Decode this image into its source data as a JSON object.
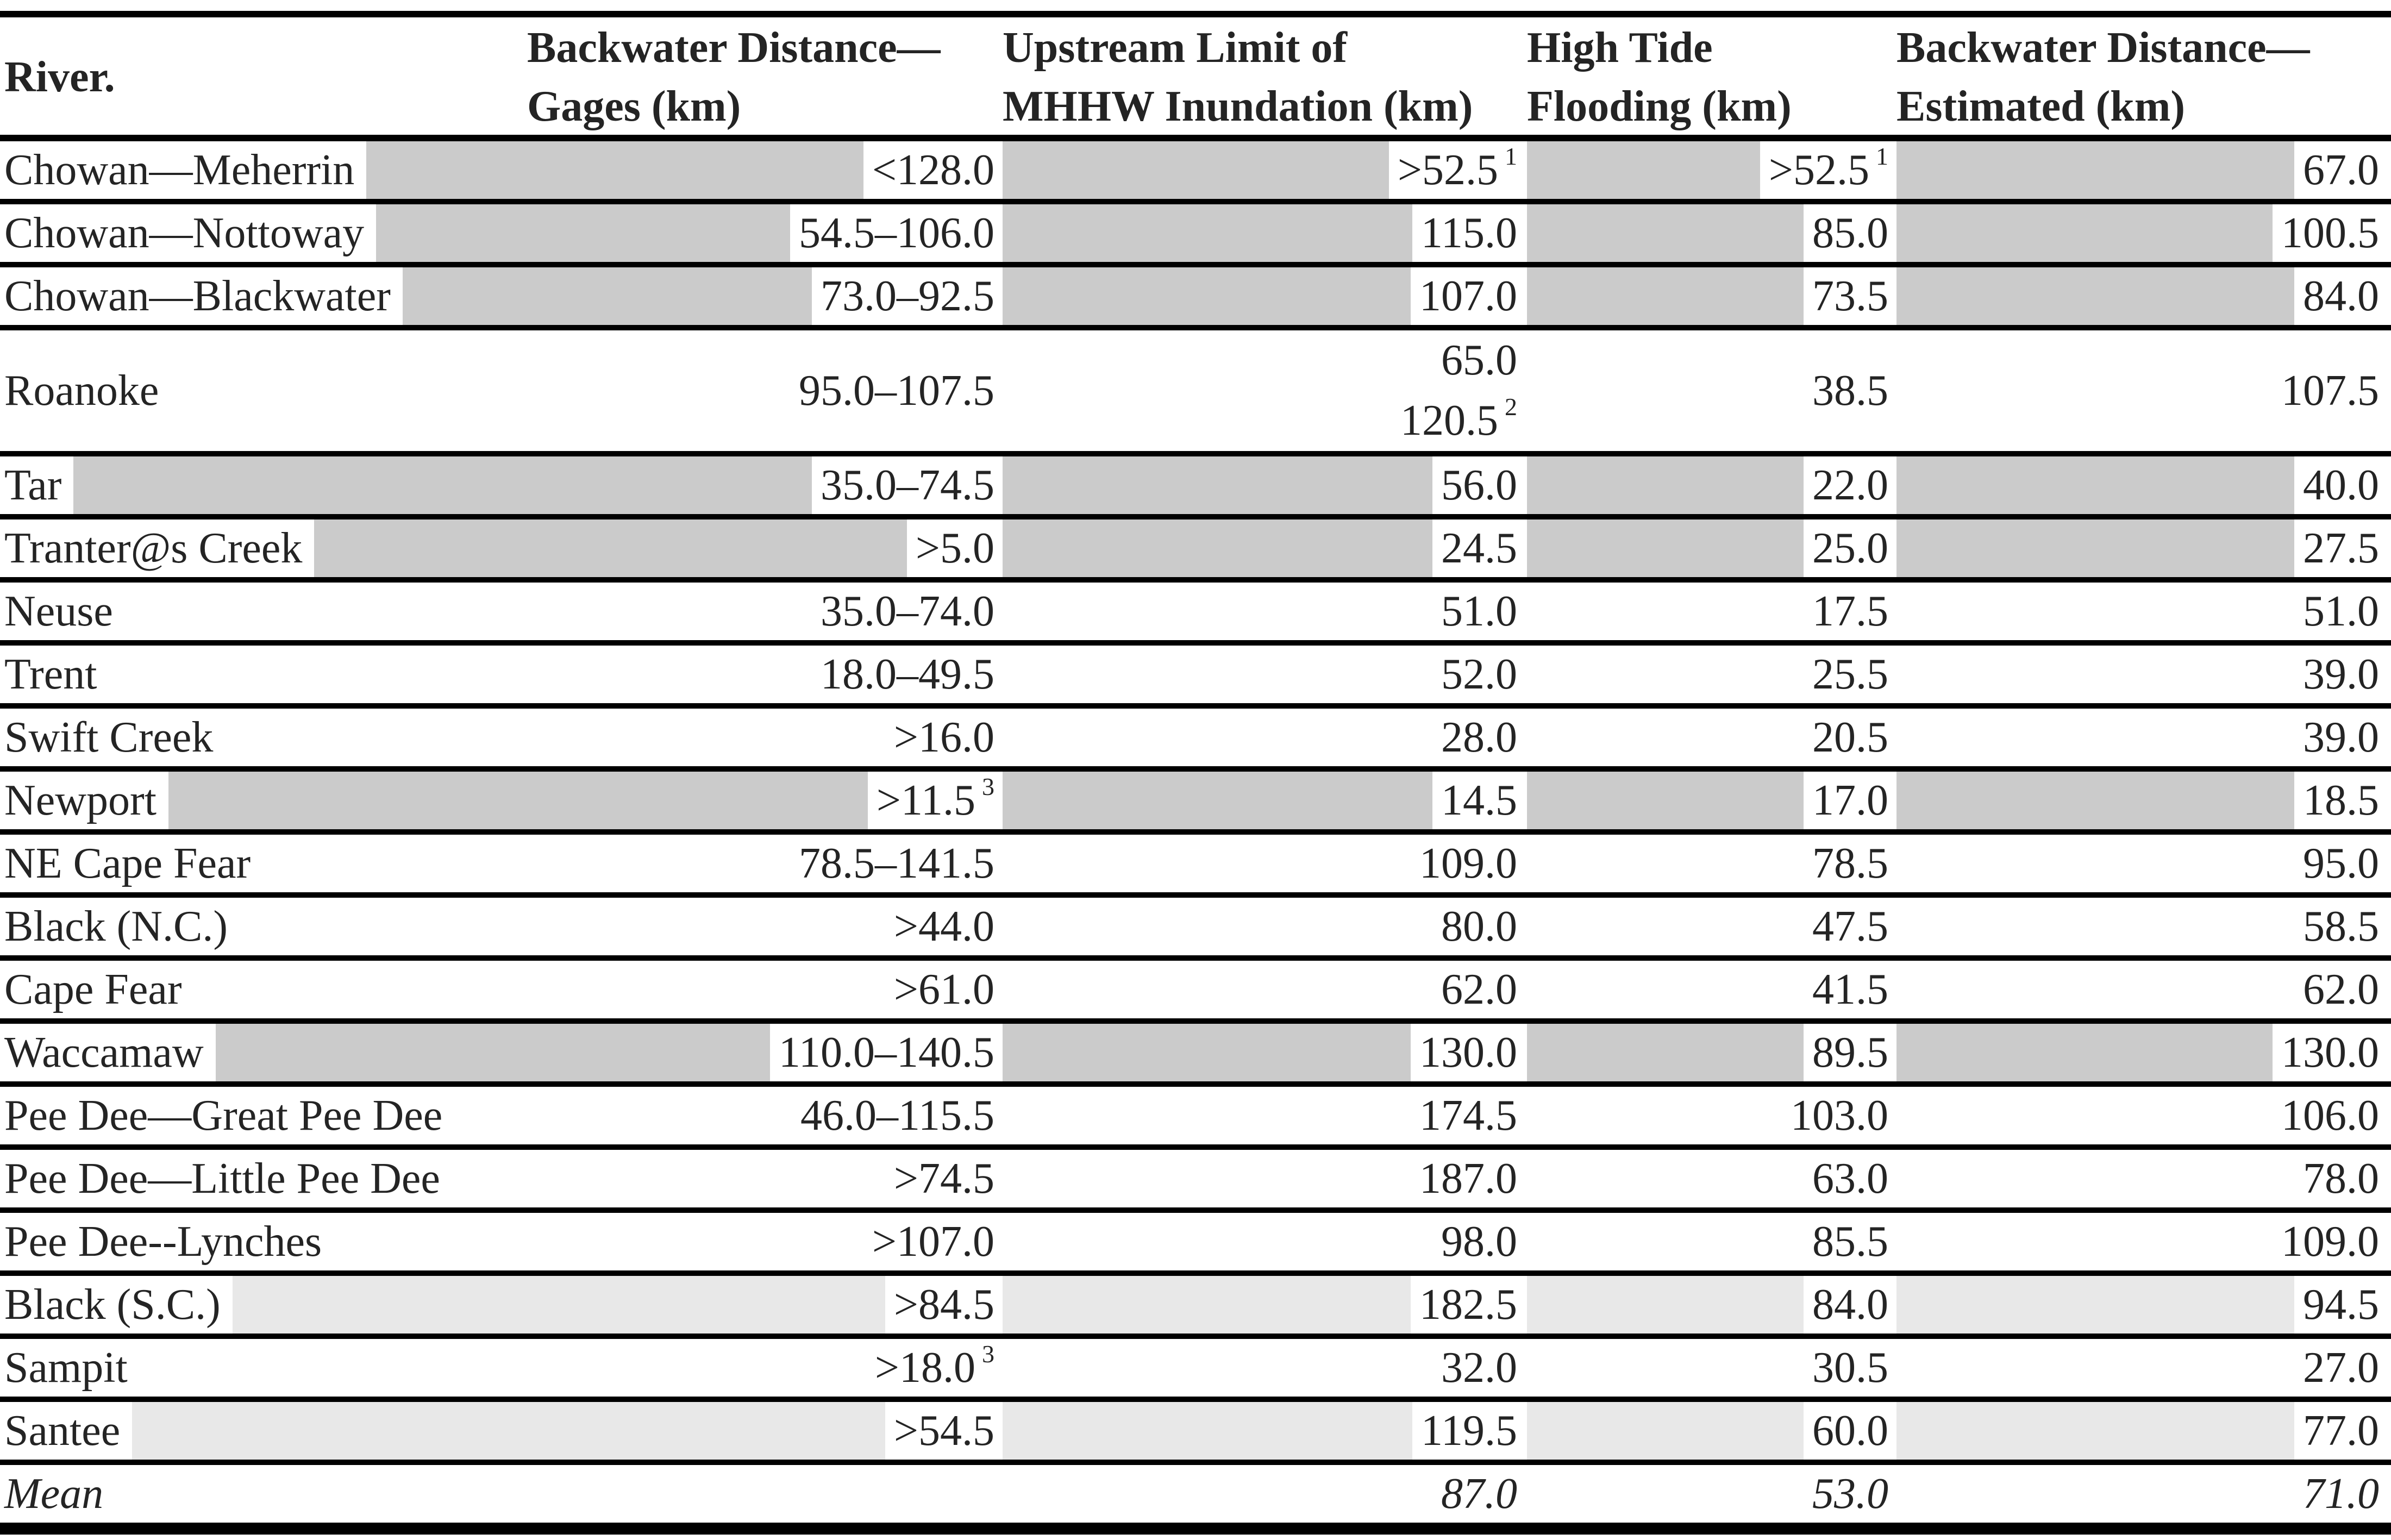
{
  "table": {
    "header": {
      "col1": "River.",
      "col2": [
        "Backwater Distance—",
        "Gages (km)"
      ],
      "col3": [
        "Upstream Limit of",
        "MHHW Inundation (km)"
      ],
      "col4": [
        "High Tide",
        "Flooding (km)"
      ],
      "col5": [
        "Backwater Distance—",
        "Estimated (km)"
      ]
    },
    "shading_colors": {
      "dark": "#cbcbcb",
      "light": "#e8e8e8"
    },
    "rows": [
      {
        "name": "Chowan—Meherrin",
        "gages": "<128.0",
        "gages_sup": "",
        "mhhw": ">52.5",
        "mhhw_sup": "1",
        "flooding": ">52.5",
        "flooding_sup": "1",
        "estimated": "67.0",
        "shade": "dark"
      },
      {
        "name": "Chowan—Nottoway",
        "gages": "54.5–106.0",
        "gages_sup": "",
        "mhhw": "115.0",
        "mhhw_sup": "",
        "flooding": "85.0",
        "flooding_sup": "",
        "estimated": "100.5",
        "shade": "dark"
      },
      {
        "name": "Chowan—Blackwater",
        "gages": "73.0–92.5",
        "gages_sup": "",
        "mhhw": "107.0",
        "mhhw_sup": "",
        "flooding": "73.5",
        "flooding_sup": "",
        "estimated": "84.0",
        "shade": "dark"
      },
      {
        "name": "Roanoke",
        "gages": "95.0–107.5",
        "gages_sup": "",
        "mhhw": "65.0",
        "mhhw_sup": "",
        "mhhw2": "120.5",
        "mhhw2_sup": "2",
        "flooding": "38.5",
        "flooding_sup": "",
        "estimated": "107.5",
        "shade": "none",
        "tall": true
      },
      {
        "name": "Tar",
        "gages": "35.0–74.5",
        "gages_sup": "",
        "mhhw": "56.0",
        "mhhw_sup": "",
        "flooding": "22.0",
        "flooding_sup": "",
        "estimated": "40.0",
        "shade": "dark"
      },
      {
        "name": "Tranter@s Creek",
        "gages": ">5.0",
        "gages_sup": "",
        "mhhw": "24.5",
        "mhhw_sup": "",
        "flooding": "25.0",
        "flooding_sup": "",
        "estimated": "27.5",
        "shade": "dark"
      },
      {
        "name": "Neuse",
        "gages": "35.0–74.0",
        "gages_sup": "",
        "mhhw": "51.0",
        "mhhw_sup": "",
        "flooding": "17.5",
        "flooding_sup": "",
        "estimated": "51.0",
        "shade": "none"
      },
      {
        "name": "Trent",
        "gages": "18.0–49.5",
        "gages_sup": "",
        "mhhw": "52.0",
        "mhhw_sup": "",
        "flooding": "25.5",
        "flooding_sup": "",
        "estimated": "39.0",
        "shade": "none"
      },
      {
        "name": "Swift Creek",
        "gages": ">16.0",
        "gages_sup": "",
        "mhhw": "28.0",
        "mhhw_sup": "",
        "flooding": "20.5",
        "flooding_sup": "",
        "estimated": "39.0",
        "shade": "none"
      },
      {
        "name": "Newport",
        "gages": ">11.5",
        "gages_sup": "3",
        "mhhw": "14.5",
        "mhhw_sup": "",
        "flooding": "17.0",
        "flooding_sup": "",
        "estimated": "18.5",
        "shade": "dark"
      },
      {
        "name": "NE Cape Fear",
        "gages": "78.5–141.5",
        "gages_sup": "",
        "mhhw": "109.0",
        "mhhw_sup": "",
        "flooding": "78.5",
        "flooding_sup": "",
        "estimated": "95.0",
        "shade": "none"
      },
      {
        "name": "Black (N.C.)",
        "gages": ">44.0",
        "gages_sup": "",
        "mhhw": "80.0",
        "mhhw_sup": "",
        "flooding": "47.5",
        "flooding_sup": "",
        "estimated": "58.5",
        "shade": "none"
      },
      {
        "name": "Cape Fear",
        "gages": ">61.0",
        "gages_sup": "",
        "mhhw": "62.0",
        "mhhw_sup": "",
        "flooding": "41.5",
        "flooding_sup": "",
        "estimated": "62.0",
        "shade": "none"
      },
      {
        "name": "Waccamaw",
        "gages": "110.0–140.5",
        "gages_sup": "",
        "mhhw": "130.0",
        "mhhw_sup": "",
        "flooding": "89.5",
        "flooding_sup": "",
        "estimated": "130.0",
        "shade": "dark"
      },
      {
        "name": "Pee Dee—Great Pee Dee",
        "gages": "46.0–115.5",
        "gages_sup": "",
        "mhhw": "174.5",
        "mhhw_sup": "",
        "flooding": "103.0",
        "flooding_sup": "",
        "estimated": "106.0",
        "shade": "none"
      },
      {
        "name": "Pee Dee—Little Pee Dee",
        "gages": ">74.5",
        "gages_sup": "",
        "mhhw": "187.0",
        "mhhw_sup": "",
        "flooding": "63.0",
        "flooding_sup": "",
        "estimated": "78.0",
        "shade": "none"
      },
      {
        "name": "Pee Dee--Lynches",
        "gages": ">107.0",
        "gages_sup": "",
        "mhhw": "98.0",
        "mhhw_sup": "",
        "flooding": "85.5",
        "flooding_sup": "",
        "estimated": "109.0",
        "shade": "none"
      },
      {
        "name": "Black (S.C.)",
        "gages": ">84.5",
        "gages_sup": "",
        "mhhw": "182.5",
        "mhhw_sup": "",
        "flooding": "84.0",
        "flooding_sup": "",
        "estimated": "94.5",
        "shade": "light"
      },
      {
        "name": "Sampit",
        "gages": ">18.0",
        "gages_sup": "3",
        "mhhw": "32.0",
        "mhhw_sup": "",
        "flooding": "30.5",
        "flooding_sup": "",
        "estimated": "27.0",
        "shade": "none"
      },
      {
        "name": "Santee",
        "gages": ">54.5",
        "gages_sup": "",
        "mhhw": "119.5",
        "mhhw_sup": "",
        "flooding": "60.0",
        "flooding_sup": "",
        "estimated": "77.0",
        "shade": "light"
      },
      {
        "name": "Mean",
        "gages": "",
        "gages_sup": "",
        "mhhw": "87.0",
        "mhhw_sup": "",
        "flooding": "53.0",
        "flooding_sup": "",
        "estimated": "71.0",
        "shade": "none",
        "italic": true
      }
    ]
  }
}
